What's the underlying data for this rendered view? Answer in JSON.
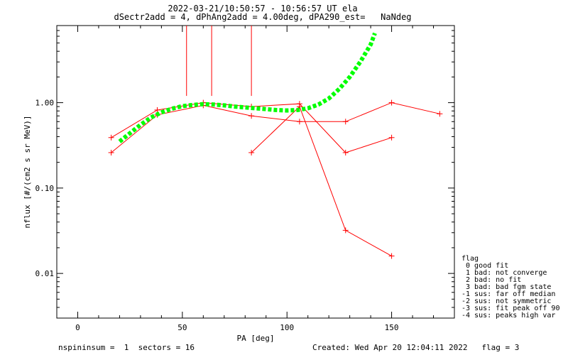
{
  "header": {
    "title_line1": "2022-03-21/10:50:57 - 10:56:57 UT ela",
    "title_line2": "dSectr2add = 4, dPhAng2add = 4.00deg, dPA290_est=   NaNdeg"
  },
  "footer": {
    "left": "nspininsum =  1  sectors = 16",
    "right": "Created: Wed Apr 20 12:04:11 2022   flag = 3"
  },
  "legend": {
    "title": "flag",
    "items": [
      " 0 good fit",
      " 1 bad: not converge",
      " 2 bad: no fit",
      " 3 bad: bad fgm state",
      "-1 sus: far off median",
      "-2 sus: not symmetric",
      "-3 sus: fit peak off 90",
      "-4 sus: peaks high var"
    ]
  },
  "colors": {
    "data": "#ff0000",
    "fit": "#00ff00",
    "axes": "#000000"
  },
  "chart_data": {
    "type": "line",
    "xlabel": "PA [deg]",
    "ylabel": "nflux [#/(cm2 s sr MeV)]",
    "xlim": [
      -10,
      180
    ],
    "ylim": [
      0.003,
      8
    ],
    "yscale": "log",
    "x_ticks": [
      0,
      50,
      100,
      150
    ],
    "x_tick_labels": [
      "0",
      "50",
      "100",
      "150"
    ],
    "y_ticks": [
      0.01,
      0.1,
      1.0
    ],
    "y_tick_labels": [
      "0.01",
      "0.10",
      "1.00"
    ],
    "vertical_markers": [
      {
        "x": 52,
        "y_from": 1.2
      },
      {
        "x": 64,
        "y_from": 1.2
      },
      {
        "x": 83,
        "y_from": 1.2
      }
    ],
    "series": [
      {
        "style": "line-plus",
        "x": [
          16,
          38,
          60,
          83,
          106,
          128,
          150,
          173
        ],
        "y": [
          0.26,
          0.72,
          0.93,
          0.7,
          0.6,
          0.6,
          1.0,
          0.74
        ]
      },
      {
        "style": "line-plus",
        "x": [
          16,
          38,
          60,
          83,
          106,
          128,
          150
        ],
        "y": [
          0.39,
          0.82,
          1.0,
          0.9,
          0.97,
          0.26,
          0.39
        ]
      },
      {
        "style": "line-plus",
        "x": [
          83,
          106,
          128,
          150
        ],
        "y": [
          0.26,
          0.9,
          0.032,
          0.016
        ]
      },
      {
        "style": "fit-dotted",
        "x": [
          20,
          25,
          30,
          35,
          40,
          45,
          50,
          55,
          60,
          65,
          70,
          75,
          80,
          85,
          90,
          95,
          100,
          105,
          110,
          115,
          120,
          125,
          130,
          135,
          140,
          142
        ],
        "y": [
          0.35,
          0.44,
          0.55,
          0.67,
          0.77,
          0.85,
          0.91,
          0.94,
          0.96,
          0.95,
          0.93,
          0.9,
          0.88,
          0.86,
          0.84,
          0.82,
          0.81,
          0.82,
          0.86,
          0.95,
          1.12,
          1.45,
          2.0,
          3.0,
          4.8,
          6.5
        ]
      }
    ]
  }
}
